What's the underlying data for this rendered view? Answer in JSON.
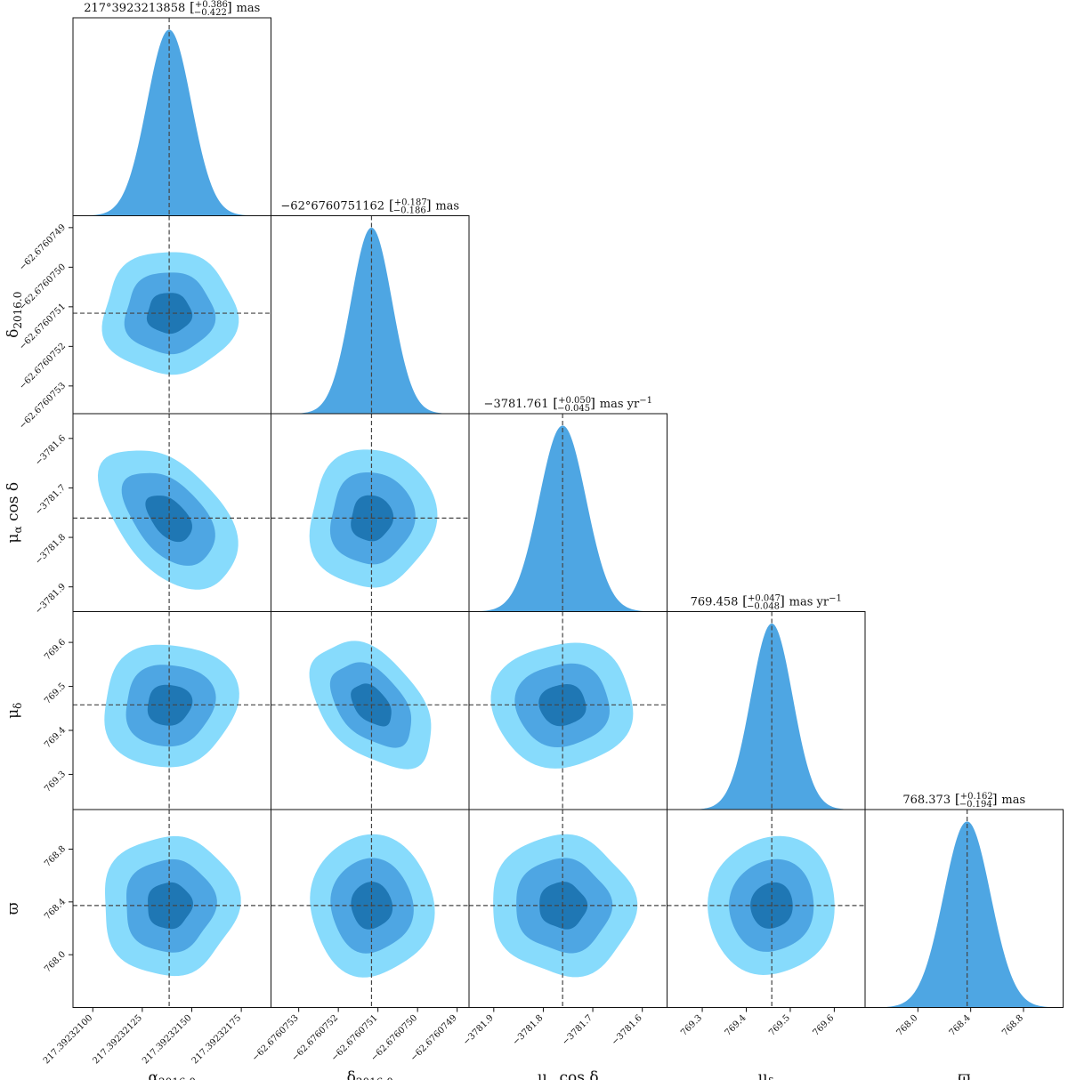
{
  "chart_data": {
    "type": "corner",
    "parameters": [
      {
        "label_main": "α",
        "label_sub": "2016.0",
        "title_value": "217°3923213858",
        "err_plus": "+0.386",
        "err_minus": "−0.422",
        "title_unit": "mas",
        "median": 217.3923213858,
        "sigma": 1.122e-07,
        "range": [
          217.3923209,
          217.3923219
        ],
        "ticks": [
          217.392321,
          217.39232125,
          217.3923215,
          217.39232175
        ],
        "tick_labels": [
          "217.39232100",
          "217.3923212̵5",
          "217.3923215̵0",
          "217.3923217̵5"
        ]
      },
      {
        "label_main": "δ",
        "label_sub": "2016.0",
        "title_value": "−62°6760751162",
        "err_plus": "+0.187",
        "err_minus": "−0.186",
        "title_unit": "mas",
        "median": -62.6760751162,
        "sigma": 5.18e-08,
        "range": [
          -62.67607537,
          -62.67607487
        ],
        "ticks": [
          -62.6760753,
          -62.6760752,
          -62.6760751,
          -62.676075,
          -62.6760749
        ],
        "tick_labels": [
          "−62.6760753",
          "−62.6760752",
          "−62.6760751",
          "−62.6760750",
          "−62.6760749"
        ]
      },
      {
        "label_main": "μ",
        "label_sub": "α",
        "label_suffix": " cos δ",
        "title_value": "−3781.761",
        "err_plus": "+0.050",
        "err_minus": "−0.045",
        "title_unit": "mas yr",
        "title_unit_sup": "−1",
        "median": -3781.761,
        "sigma": 0.0475,
        "range": [
          -3781.95,
          -3781.55
        ],
        "ticks": [
          -3781.9,
          -3781.8,
          -3781.7,
          -3781.6
        ],
        "tick_labels": [
          "−3781.9",
          "−3781.8",
          "−3781.7",
          "−3781.6"
        ]
      },
      {
        "label_main": "μ",
        "label_sub": "δ",
        "title_value": "769.458",
        "err_plus": "+0.047",
        "err_minus": "−0.048",
        "title_unit": "mas yr",
        "title_unit_sup": "−1",
        "median": 769.458,
        "sigma": 0.0475,
        "range": [
          769.22,
          769.67
        ],
        "ticks": [
          769.3,
          769.4,
          769.5,
          769.6
        ],
        "tick_labels": [
          "769.3",
          "769.4",
          "769.5",
          "769.6"
        ]
      },
      {
        "label_main": "ϖ",
        "title_value": "768.373",
        "err_plus": "+0.162",
        "err_minus": "−0.194",
        "title_unit": "mas",
        "median": 768.373,
        "sigma": 0.178,
        "range": [
          767.6,
          769.1
        ],
        "ticks": [
          768.0,
          768.4,
          768.8
        ],
        "tick_labels": [
          "768.0",
          "768.4",
          "768.8"
        ]
      }
    ],
    "correlations": [
      [
        1.0,
        0.0,
        0.0,
        0.0,
        0.0
      ],
      [
        0.0,
        1.0,
        0.0,
        0.0,
        0.0
      ],
      [
        -0.45,
        0.0,
        1.0,
        0.0,
        0.0
      ],
      [
        0.0,
        -0.45,
        0.0,
        1.0,
        0.0
      ],
      [
        0.0,
        0.0,
        0.0,
        0.0,
        1.0
      ]
    ],
    "contour_levels_sigma": [
      1,
      2,
      3
    ],
    "colors": {
      "inner": "#1f77b4",
      "middle": "#4ea6e3",
      "outer": "#87dbfc",
      "histogram": "#4ea6e3",
      "median_line": "#444444",
      "frame": "#111111"
    }
  }
}
